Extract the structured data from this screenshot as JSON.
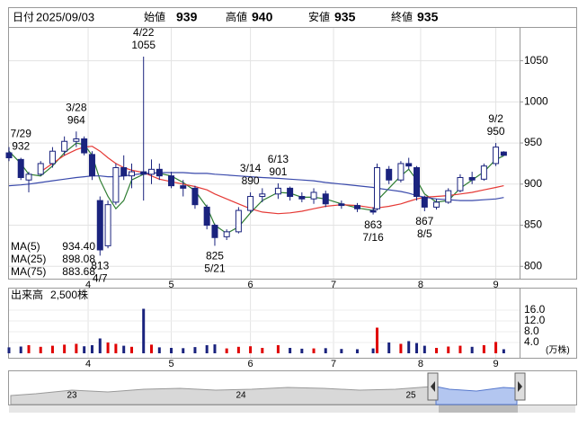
{
  "header": {
    "fields": [
      {
        "label": "日付",
        "value": "2025/09/03",
        "color": "#000000"
      },
      {
        "label": "始値",
        "value": 939,
        "color": "#000000"
      },
      {
        "label": "高値",
        "value": 940,
        "color": "#e00000"
      },
      {
        "label": "安値",
        "value": 935,
        "color": "#008000"
      },
      {
        "label": "終値",
        "value": 935,
        "color": "#000000"
      }
    ]
  },
  "chart_data": {
    "type": "candlestick",
    "xlim": [
      0,
      129
    ],
    "xticks": [
      {
        "value": 20,
        "label": "4"
      },
      {
        "value": 41,
        "label": "5"
      },
      {
        "value": 61,
        "label": "6"
      },
      {
        "value": 82,
        "label": "7"
      },
      {
        "value": 104,
        "label": "8"
      },
      {
        "value": 123,
        "label": "9"
      }
    ],
    "ylim": [
      785,
      1090
    ],
    "yticks": [
      800,
      850,
      900,
      950,
      1000,
      1050
    ],
    "grid": true,
    "up_color": "#ffffff",
    "down_color": "#1a237e",
    "edge_color": "#1a237e",
    "candles": {
      "x": [
        0,
        3,
        5,
        8,
        11,
        14,
        17,
        19,
        21,
        23,
        25,
        27,
        29,
        31,
        34,
        36,
        38,
        41,
        44,
        47,
        50,
        52,
        55,
        58,
        61,
        64,
        68,
        71,
        74,
        77,
        80,
        84,
        88,
        92,
        93,
        96,
        99,
        101,
        103,
        105,
        108,
        111,
        114,
        117,
        120,
        123,
        125
      ],
      "open": [
        938,
        930,
        905,
        912,
        925,
        940,
        952,
        955,
        936,
        880,
        825,
        878,
        920,
        910,
        915,
        912,
        918,
        910,
        898,
        895,
        872,
        850,
        836,
        842,
        868,
        885,
        888,
        895,
        885,
        882,
        888,
        876,
        874,
        868,
        870,
        918,
        905,
        925,
        920,
        884,
        872,
        878,
        892,
        908,
        906,
        925,
        939
      ],
      "high": [
        945,
        932,
        915,
        928,
        945,
        958,
        964,
        958,
        940,
        885,
        880,
        925,
        935,
        925,
        1055,
        930,
        925,
        915,
        905,
        898,
        875,
        852,
        845,
        872,
        890,
        895,
        901,
        897,
        890,
        895,
        892,
        880,
        877,
        872,
        925,
        922,
        928,
        932,
        922,
        886,
        882,
        895,
        912,
        915,
        925,
        950,
        940
      ],
      "low": [
        928,
        905,
        890,
        910,
        920,
        935,
        945,
        935,
        905,
        813,
        822,
        875,
        905,
        895,
        880,
        900,
        905,
        895,
        885,
        870,
        845,
        825,
        832,
        840,
        865,
        878,
        882,
        880,
        878,
        876,
        872,
        870,
        866,
        863,
        868,
        900,
        902,
        918,
        880,
        867,
        869,
        876,
        890,
        900,
        904,
        922,
        935
      ],
      "close": [
        932,
        908,
        912,
        925,
        940,
        952,
        955,
        938,
        910,
        820,
        875,
        920,
        910,
        915,
        912,
        918,
        910,
        898,
        895,
        875,
        850,
        835,
        842,
        868,
        885,
        888,
        895,
        885,
        882,
        890,
        876,
        874,
        870,
        866,
        920,
        905,
        925,
        922,
        885,
        872,
        878,
        892,
        908,
        905,
        922,
        945,
        935
      ]
    },
    "ma": [
      {
        "name": "MA(5)",
        "last": 934.4,
        "label": "934.40",
        "color": "#2e7d32",
        "values": [
          940,
          925,
          912,
          910,
          922,
          938,
          950,
          948,
          935,
          905,
          885,
          870,
          880,
          905,
          912,
          914,
          913,
          910,
          902,
          892,
          872,
          850,
          840,
          848,
          865,
          880,
          890,
          889,
          884,
          884,
          882,
          876,
          871,
          868,
          880,
          895,
          910,
          918,
          905,
          888,
          878,
          880,
          895,
          905,
          915,
          930,
          934.4
        ]
      },
      {
        "name": "MA(25)",
        "last": 898.08,
        "label": "898.08",
        "color": "#e53935",
        "values": [
          null,
          null,
          null,
          915,
          925,
          935,
          942,
          945,
          946,
          940,
          932,
          925,
          920,
          917,
          914,
          910,
          906,
          903,
          900,
          897,
          893,
          888,
          882,
          876,
          870,
          866,
          864,
          865,
          867,
          870,
          873,
          875,
          874,
          871,
          871,
          873,
          876,
          879,
          882,
          884,
          885,
          886,
          888,
          890,
          893,
          896,
          898.08
        ]
      },
      {
        "name": "MA(75)",
        "last": 883.68,
        "label": "883.68",
        "color": "#3949ab",
        "values": [
          898,
          899,
          900,
          902,
          904,
          906,
          908,
          909,
          910,
          910,
          909,
          909,
          910,
          911,
          913,
          913,
          914,
          914,
          914,
          913,
          913,
          912,
          911,
          910,
          909,
          908,
          907,
          906,
          905,
          904,
          902,
          900,
          898,
          896,
          895,
          893,
          891,
          889,
          886,
          884,
          882,
          881,
          880,
          880,
          881,
          882,
          883.68
        ]
      }
    ],
    "annotations": [
      {
        "date": "3/28",
        "price": 964
      },
      {
        "date": "3/14",
        "price": 890
      },
      {
        "date": "4/22",
        "price": 1055
      },
      {
        "date": "4/7",
        "price": 813
      },
      {
        "date": "5/21",
        "price": 825
      },
      {
        "date": "6/13",
        "price": 901
      },
      {
        "date": "7/16",
        "price": 863
      },
      {
        "date": "7/29",
        "price": 932
      },
      {
        "date": "8/5",
        "price": 867
      },
      {
        "date": "9/2",
        "price": 950
      }
    ],
    "volume": {
      "title": "出来高",
      "value": "2,500株",
      "unit": "(万株)",
      "ylim": [
        0,
        24
      ],
      "yticks": [
        {
          "value": 4,
          "label": "4.0"
        },
        {
          "value": 8,
          "label": "8.0"
        },
        {
          "value": 12,
          "label": "12.0"
        },
        {
          "value": 16,
          "label": "16.0"
        }
      ],
      "up_color": "#e00000",
      "down_color": "#1a237e",
      "values": [
        2.2,
        2.5,
        3.0,
        2.4,
        2.8,
        3.2,
        3.5,
        2.6,
        3.0,
        5.5,
        4.0,
        3.5,
        2.8,
        2.4,
        16.5,
        3.2,
        2.2,
        2.0,
        1.9,
        2.3,
        3.0,
        3.3,
        1.8,
        2.4,
        2.6,
        2.0,
        3.0,
        2.0,
        1.7,
        1.8,
        1.9,
        1.6,
        1.5,
        1.8,
        9.5,
        4.0,
        3.5,
        4.5,
        3.8,
        2.8,
        2.0,
        2.5,
        2.8,
        2.4,
        3.0,
        4.2,
        1.5
      ]
    }
  },
  "navigator": {
    "labels": [
      "23",
      "24",
      "25"
    ]
  }
}
